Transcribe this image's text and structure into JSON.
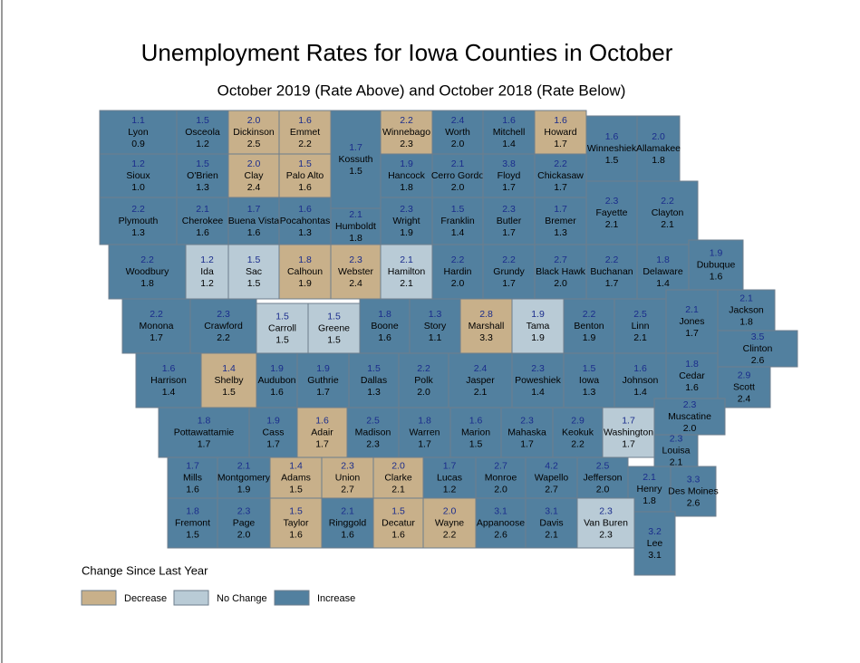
{
  "title": "Unemployment Rates for Iowa Counties in October",
  "subtitle": "October 2019 (Rate Above) and October 2018 (Rate Below)",
  "legend": {
    "title": "Change Since Last Year",
    "items": [
      {
        "label": "Decrease",
        "color": "#c8b08a"
      },
      {
        "label": "No Change",
        "color": "#b9cbd6"
      },
      {
        "label": "Increase",
        "color": "#52809f"
      }
    ]
  },
  "counties": [
    {
      "name": "Lyon",
      "rate_2019": "1.1",
      "rate_2018": "0.9",
      "change": "Increase"
    },
    {
      "name": "Osceola",
      "rate_2019": "1.5",
      "rate_2018": "1.2",
      "change": "Increase"
    },
    {
      "name": "Dickinson",
      "rate_2019": "2.0",
      "rate_2018": "2.5",
      "change": "Decrease"
    },
    {
      "name": "Emmet",
      "rate_2019": "1.6",
      "rate_2018": "2.2",
      "change": "Decrease"
    },
    {
      "name": "Kossuth",
      "rate_2019": "1.7",
      "rate_2018": "1.5",
      "change": "Increase"
    },
    {
      "name": "Winnebago",
      "rate_2019": "2.2",
      "rate_2018": "2.3",
      "change": "Decrease"
    },
    {
      "name": "Worth",
      "rate_2019": "2.4",
      "rate_2018": "2.0",
      "change": "Increase"
    },
    {
      "name": "Mitchell",
      "rate_2019": "1.6",
      "rate_2018": "1.4",
      "change": "Increase"
    },
    {
      "name": "Howard",
      "rate_2019": "1.6",
      "rate_2018": "1.7",
      "change": "Decrease"
    },
    {
      "name": "Winneshiek",
      "rate_2019": "1.6",
      "rate_2018": "1.5",
      "change": "Increase"
    },
    {
      "name": "Allamakee",
      "rate_2019": "2.0",
      "rate_2018": "1.8",
      "change": "Increase"
    },
    {
      "name": "Sioux",
      "rate_2019": "1.2",
      "rate_2018": "1.0",
      "change": "Increase"
    },
    {
      "name": "O'Brien",
      "rate_2019": "1.5",
      "rate_2018": "1.3",
      "change": "Increase"
    },
    {
      "name": "Clay",
      "rate_2019": "2.0",
      "rate_2018": "2.4",
      "change": "Decrease"
    },
    {
      "name": "Palo Alto",
      "rate_2019": "1.5",
      "rate_2018": "1.6",
      "change": "Decrease"
    },
    {
      "name": "Hancock",
      "rate_2019": "1.9",
      "rate_2018": "1.8",
      "change": "Increase"
    },
    {
      "name": "Cerro Gordo",
      "rate_2019": "2.1",
      "rate_2018": "2.0",
      "change": "Increase"
    },
    {
      "name": "Floyd",
      "rate_2019": "3.8",
      "rate_2018": "1.7",
      "change": "Increase"
    },
    {
      "name": "Chickasaw",
      "rate_2019": "2.2",
      "rate_2018": "1.7",
      "change": "Increase"
    },
    {
      "name": "Plymouth",
      "rate_2019": "2.2",
      "rate_2018": "1.3",
      "change": "Increase"
    },
    {
      "name": "Cherokee",
      "rate_2019": "2.1",
      "rate_2018": "1.6",
      "change": "Increase"
    },
    {
      "name": "Buena Vista",
      "rate_2019": "1.7",
      "rate_2018": "1.6",
      "change": "Increase"
    },
    {
      "name": "Pocahontas",
      "rate_2019": "1.6",
      "rate_2018": "1.3",
      "change": "Increase"
    },
    {
      "name": "Humboldt",
      "rate_2019": "2.1",
      "rate_2018": "1.8",
      "change": "Increase"
    },
    {
      "name": "Wright",
      "rate_2019": "2.3",
      "rate_2018": "1.9",
      "change": "Increase"
    },
    {
      "name": "Franklin",
      "rate_2019": "1.5",
      "rate_2018": "1.4",
      "change": "Increase"
    },
    {
      "name": "Butler",
      "rate_2019": "2.3",
      "rate_2018": "1.7",
      "change": "Increase"
    },
    {
      "name": "Bremer",
      "rate_2019": "1.7",
      "rate_2018": "1.3",
      "change": "Increase"
    },
    {
      "name": "Fayette",
      "rate_2019": "2.3",
      "rate_2018": "2.1",
      "change": "Increase"
    },
    {
      "name": "Clayton",
      "rate_2019": "2.2",
      "rate_2018": "2.1",
      "change": "Increase"
    },
    {
      "name": "Woodbury",
      "rate_2019": "2.2",
      "rate_2018": "1.8",
      "change": "Increase"
    },
    {
      "name": "Ida",
      "rate_2019": "1.2",
      "rate_2018": "1.2",
      "change": "No Change"
    },
    {
      "name": "Sac",
      "rate_2019": "1.5",
      "rate_2018": "1.5",
      "change": "No Change"
    },
    {
      "name": "Calhoun",
      "rate_2019": "1.8",
      "rate_2018": "1.9",
      "change": "Decrease"
    },
    {
      "name": "Webster",
      "rate_2019": "2.3",
      "rate_2018": "2.4",
      "change": "Decrease"
    },
    {
      "name": "Hamilton",
      "rate_2019": "2.1",
      "rate_2018": "2.1",
      "change": "No Change"
    },
    {
      "name": "Hardin",
      "rate_2019": "2.2",
      "rate_2018": "2.0",
      "change": "Increase"
    },
    {
      "name": "Grundy",
      "rate_2019": "2.2",
      "rate_2018": "1.7",
      "change": "Increase"
    },
    {
      "name": "Black Hawk",
      "rate_2019": "2.7",
      "rate_2018": "2.0",
      "change": "Increase"
    },
    {
      "name": "Buchanan",
      "rate_2019": "2.2",
      "rate_2018": "1.7",
      "change": "Increase"
    },
    {
      "name": "Delaware",
      "rate_2019": "1.8",
      "rate_2018": "1.4",
      "change": "Increase"
    },
    {
      "name": "Dubuque",
      "rate_2019": "1.9",
      "rate_2018": "1.6",
      "change": "Increase"
    },
    {
      "name": "Monona",
      "rate_2019": "2.2",
      "rate_2018": "1.7",
      "change": "Increase"
    },
    {
      "name": "Crawford",
      "rate_2019": "2.3",
      "rate_2018": "2.2",
      "change": "Increase"
    },
    {
      "name": "Carroll",
      "rate_2019": "1.5",
      "rate_2018": "1.5",
      "change": "No Change"
    },
    {
      "name": "Greene",
      "rate_2019": "1.5",
      "rate_2018": "1.5",
      "change": "No Change"
    },
    {
      "name": "Boone",
      "rate_2019": "1.8",
      "rate_2018": "1.6",
      "change": "Increase"
    },
    {
      "name": "Story",
      "rate_2019": "1.3",
      "rate_2018": "1.1",
      "change": "Increase"
    },
    {
      "name": "Marshall",
      "rate_2019": "2.8",
      "rate_2018": "3.3",
      "change": "Decrease"
    },
    {
      "name": "Tama",
      "rate_2019": "1.9",
      "rate_2018": "1.9",
      "change": "No Change"
    },
    {
      "name": "Benton",
      "rate_2019": "2.2",
      "rate_2018": "1.9",
      "change": "Increase"
    },
    {
      "name": "Linn",
      "rate_2019": "2.5",
      "rate_2018": "2.1",
      "change": "Increase"
    },
    {
      "name": "Jones",
      "rate_2019": "2.1",
      "rate_2018": "1.7",
      "change": "Increase"
    },
    {
      "name": "Jackson",
      "rate_2019": "2.1",
      "rate_2018": "1.8",
      "change": "Increase"
    },
    {
      "name": "Clinton",
      "rate_2019": "3.5",
      "rate_2018": "2.6",
      "change": "Increase"
    },
    {
      "name": "Harrison",
      "rate_2019": "1.6",
      "rate_2018": "1.4",
      "change": "Increase"
    },
    {
      "name": "Shelby",
      "rate_2019": "1.4",
      "rate_2018": "1.5",
      "change": "Decrease"
    },
    {
      "name": "Audubon",
      "rate_2019": "1.9",
      "rate_2018": "1.6",
      "change": "Increase"
    },
    {
      "name": "Guthrie",
      "rate_2019": "1.9",
      "rate_2018": "1.7",
      "change": "Increase"
    },
    {
      "name": "Dallas",
      "rate_2019": "1.5",
      "rate_2018": "1.3",
      "change": "Increase"
    },
    {
      "name": "Polk",
      "rate_2019": "2.2",
      "rate_2018": "2.0",
      "change": "Increase"
    },
    {
      "name": "Jasper",
      "rate_2019": "2.4",
      "rate_2018": "2.1",
      "change": "Increase"
    },
    {
      "name": "Poweshiek",
      "rate_2019": "2.3",
      "rate_2018": "1.4",
      "change": "Increase"
    },
    {
      "name": "Iowa",
      "rate_2019": "1.5",
      "rate_2018": "1.3",
      "change": "Increase"
    },
    {
      "name": "Johnson",
      "rate_2019": "1.6",
      "rate_2018": "1.4",
      "change": "Increase"
    },
    {
      "name": "Cedar",
      "rate_2019": "1.8",
      "rate_2018": "1.6",
      "change": "Increase"
    },
    {
      "name": "Scott",
      "rate_2019": "2.9",
      "rate_2018": "2.4",
      "change": "Increase"
    },
    {
      "name": "Pottawattamie",
      "rate_2019": "1.8",
      "rate_2018": "1.7",
      "change": "Increase"
    },
    {
      "name": "Cass",
      "rate_2019": "1.9",
      "rate_2018": "1.7",
      "change": "Increase"
    },
    {
      "name": "Adair",
      "rate_2019": "1.6",
      "rate_2018": "1.7",
      "change": "Decrease"
    },
    {
      "name": "Madison",
      "rate_2019": "2.5",
      "rate_2018": "2.3",
      "change": "Increase"
    },
    {
      "name": "Warren",
      "rate_2019": "1.8",
      "rate_2018": "1.7",
      "change": "Increase"
    },
    {
      "name": "Marion",
      "rate_2019": "1.6",
      "rate_2018": "1.5",
      "change": "Increase"
    },
    {
      "name": "Mahaska",
      "rate_2019": "2.3",
      "rate_2018": "1.7",
      "change": "Increase"
    },
    {
      "name": "Keokuk",
      "rate_2019": "2.9",
      "rate_2018": "2.2",
      "change": "Increase"
    },
    {
      "name": "Washington",
      "rate_2019": "1.7",
      "rate_2018": "1.7",
      "change": "No Change"
    },
    {
      "name": "Muscatine",
      "rate_2019": "2.3",
      "rate_2018": "2.0",
      "change": "Increase"
    },
    {
      "name": "Louisa",
      "rate_2019": "2.3",
      "rate_2018": "2.1",
      "change": "Increase"
    },
    {
      "name": "Mills",
      "rate_2019": "1.7",
      "rate_2018": "1.6",
      "change": "Increase"
    },
    {
      "name": "Montgomery",
      "rate_2019": "2.1",
      "rate_2018": "1.9",
      "change": "Increase"
    },
    {
      "name": "Adams",
      "rate_2019": "1.4",
      "rate_2018": "1.5",
      "change": "Decrease"
    },
    {
      "name": "Union",
      "rate_2019": "2.3",
      "rate_2018": "2.7",
      "change": "Decrease"
    },
    {
      "name": "Clarke",
      "rate_2019": "2.0",
      "rate_2018": "2.1",
      "change": "Decrease"
    },
    {
      "name": "Lucas",
      "rate_2019": "1.7",
      "rate_2018": "1.2",
      "change": "Increase"
    },
    {
      "name": "Monroe",
      "rate_2019": "2.7",
      "rate_2018": "2.0",
      "change": "Increase"
    },
    {
      "name": "Wapello",
      "rate_2019": "4.2",
      "rate_2018": "2.7",
      "change": "Increase"
    },
    {
      "name": "Jefferson",
      "rate_2019": "2.5",
      "rate_2018": "2.0",
      "change": "Increase"
    },
    {
      "name": "Henry",
      "rate_2019": "2.1",
      "rate_2018": "1.8",
      "change": "Increase"
    },
    {
      "name": "Des Moines",
      "rate_2019": "3.3",
      "rate_2018": "2.6",
      "change": "Increase"
    },
    {
      "name": "Fremont",
      "rate_2019": "1.8",
      "rate_2018": "1.5",
      "change": "Increase"
    },
    {
      "name": "Page",
      "rate_2019": "2.3",
      "rate_2018": "2.0",
      "change": "Increase"
    },
    {
      "name": "Taylor",
      "rate_2019": "1.5",
      "rate_2018": "1.6",
      "change": "Decrease"
    },
    {
      "name": "Ringgold",
      "rate_2019": "2.1",
      "rate_2018": "1.6",
      "change": "Increase"
    },
    {
      "name": "Decatur",
      "rate_2019": "1.5",
      "rate_2018": "1.6",
      "change": "Decrease"
    },
    {
      "name": "Wayne",
      "rate_2019": "2.0",
      "rate_2018": "2.2",
      "change": "Decrease"
    },
    {
      "name": "Appanoose",
      "rate_2019": "3.1",
      "rate_2018": "2.6",
      "change": "Increase"
    },
    {
      "name": "Davis",
      "rate_2019": "3.1",
      "rate_2018": "2.1",
      "change": "Increase"
    },
    {
      "name": "Van Buren",
      "rate_2019": "2.3",
      "rate_2018": "2.3",
      "change": "No Change"
    },
    {
      "name": "Lee",
      "rate_2019": "3.2",
      "rate_2018": "3.1",
      "change": "Increase"
    }
  ]
}
